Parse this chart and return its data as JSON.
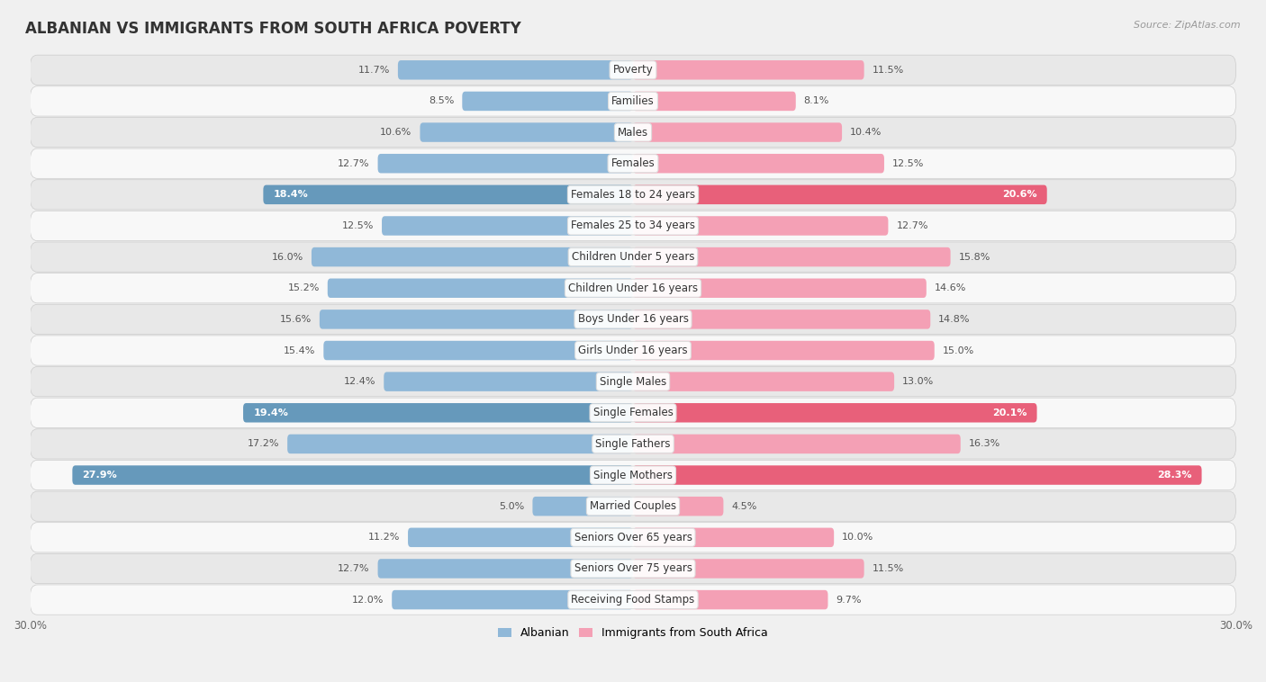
{
  "title": "ALBANIAN VS IMMIGRANTS FROM SOUTH AFRICA POVERTY",
  "source": "Source: ZipAtlas.com",
  "categories": [
    "Poverty",
    "Families",
    "Males",
    "Females",
    "Females 18 to 24 years",
    "Females 25 to 34 years",
    "Children Under 5 years",
    "Children Under 16 years",
    "Boys Under 16 years",
    "Girls Under 16 years",
    "Single Males",
    "Single Females",
    "Single Fathers",
    "Single Mothers",
    "Married Couples",
    "Seniors Over 65 years",
    "Seniors Over 75 years",
    "Receiving Food Stamps"
  ],
  "albanian": [
    11.7,
    8.5,
    10.6,
    12.7,
    18.4,
    12.5,
    16.0,
    15.2,
    15.6,
    15.4,
    12.4,
    19.4,
    17.2,
    27.9,
    5.0,
    11.2,
    12.7,
    12.0
  ],
  "immigrants": [
    11.5,
    8.1,
    10.4,
    12.5,
    20.6,
    12.7,
    15.8,
    14.6,
    14.8,
    15.0,
    13.0,
    20.1,
    16.3,
    28.3,
    4.5,
    10.0,
    11.5,
    9.7
  ],
  "albanian_color": "#90b8d8",
  "immigrants_color": "#f4a0b5",
  "albanian_highlight_color": "#6699bb",
  "immigrants_highlight_color": "#e8607a",
  "highlight_rows": [
    4,
    11,
    13
  ],
  "x_max": 30.0,
  "bar_height": 0.62,
  "bg_color": "#f0f0f0",
  "row_colors": [
    "#e8e8e8",
    "#f8f8f8"
  ],
  "legend_albanian": "Albanian",
  "legend_immigrants": "Immigrants from South Africa",
  "title_fontsize": 12,
  "label_fontsize": 8.5,
  "value_fontsize": 8.0,
  "axis_fontsize": 8.5
}
